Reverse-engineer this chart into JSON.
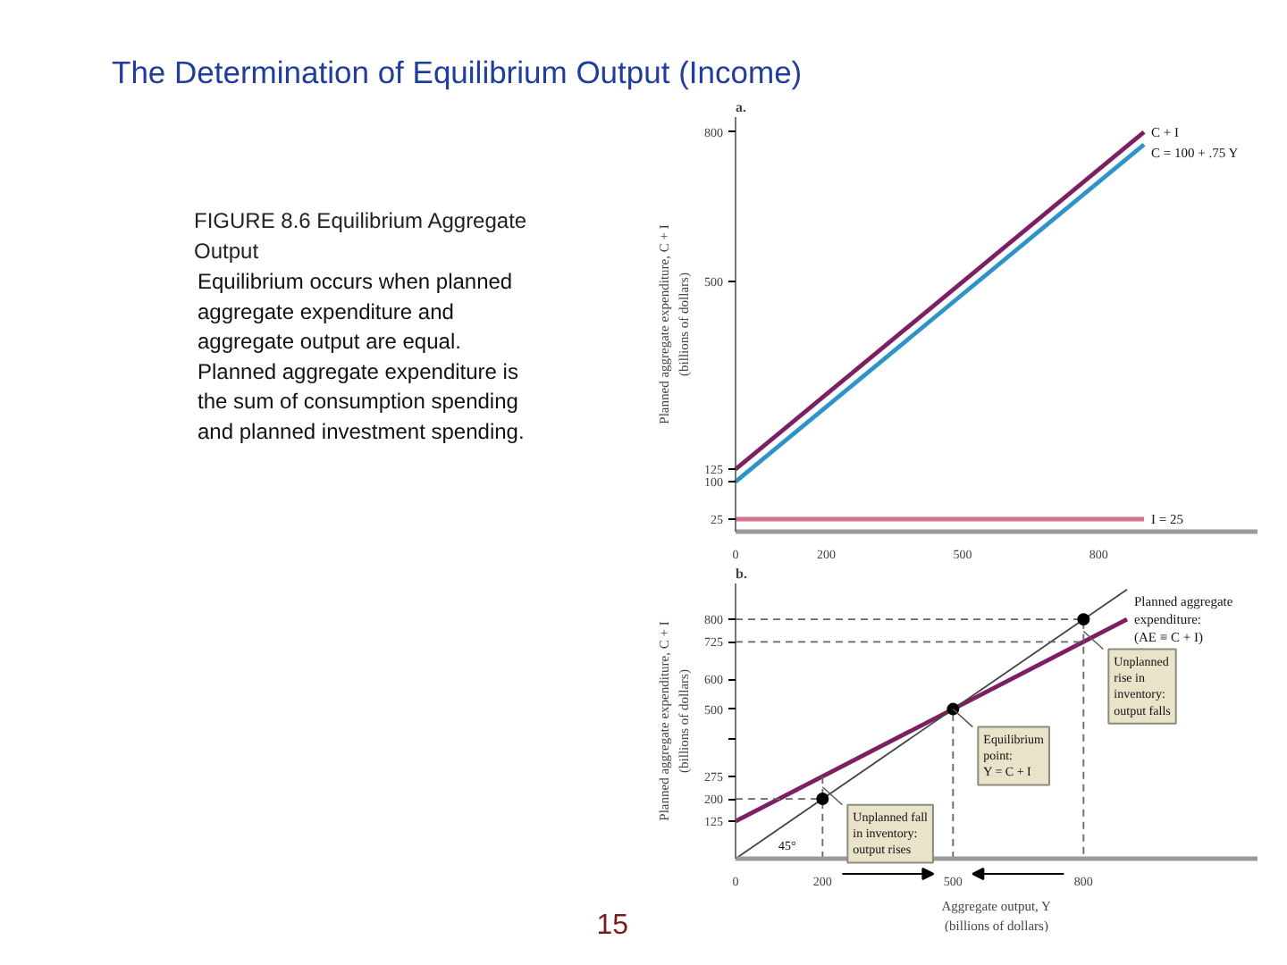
{
  "chart_data": [
    {
      "type": "other",
      "title": "The Determination of Equilibrium Output (Income)",
      "subtitle": "FIGURE 8.6 Equilibrium Aggregate Output",
      "annotations": [
        "Equilibrium occurs when planned aggregate expenditure and aggregate output are equal. Planned aggregate expenditure is the sum of consumption spending and planned investment spending.",
        "15"
      ]
    },
    {
      "type": "line",
      "title": "a.",
      "ylabel": "Planned aggregate expenditure, C + I\n(billions of dollars)",
      "xlim": [
        0,
        1150
      ],
      "ylim": [
        0,
        830
      ],
      "xticks": [
        0,
        200,
        500,
        800
      ],
      "yticks": [
        25,
        100,
        125,
        500,
        800
      ],
      "series": [
        {
          "name": "C + I",
          "color": "#7d1f62",
          "x": [
            0,
            900
          ],
          "values": [
            125,
            800
          ]
        },
        {
          "name": "C = 100 + .75 Y",
          "color": "#2e93c8",
          "x": [
            0,
            900
          ],
          "values": [
            100,
            775
          ]
        },
        {
          "name": "I = 25",
          "color": "#d5728c",
          "x": [
            0,
            900
          ],
          "values": [
            25,
            25
          ]
        }
      ]
    },
    {
      "type": "line",
      "title": "b.",
      "xlabel": "Aggregate output, Y\n(billions of dollars)",
      "ylabel": "Planned aggregate expenditure, C + I\n(billions of dollars)",
      "xlim": [
        0,
        1200
      ],
      "ylim": [
        0,
        920
      ],
      "xticks": [
        0,
        200,
        500,
        800
      ],
      "yticks": [
        125,
        200,
        275,
        {
          "value": 400,
          "label": null
        },
        500,
        600,
        725,
        800
      ],
      "series": [
        {
          "name": "Planned aggregate\nexpenditure:\n(AE ≡ C + I)",
          "color": "#7d1f62",
          "x": [
            0,
            900
          ],
          "values": [
            125,
            800
          ]
        },
        {
          "color": "#444444",
          "x": [
            0,
            900
          ],
          "values": [
            0,
            900
          ]
        },
        {
          "color": "#666666",
          "line_style": "dashed",
          "x": [
            0,
            200
          ],
          "values": [
            200,
            200
          ]
        },
        {
          "color": "#666666",
          "line_style": "dashed",
          "x": [
            200,
            200
          ],
          "values": [
            0,
            275
          ]
        },
        {
          "color": "#666666",
          "line_style": "dashed",
          "x": [
            500,
            500
          ],
          "values": [
            0,
            500
          ]
        },
        {
          "color": "#666666",
          "line_style": "dashed",
          "x": [
            0,
            800,
            800
          ],
          "values": [
            800,
            800,
            0
          ]
        },
        {
          "color": "#666666",
          "line_style": "dashed",
          "x": [
            0,
            800
          ],
          "values": [
            725,
            725
          ]
        },
        {
          "type": "scatter",
          "marker": "circle",
          "color": "#000000",
          "x": [
            200,
            500,
            800
          ],
          "values": [
            200,
            500,
            800
          ]
        }
      ],
      "annotations": [
        {
          "text": "Equilibrium\npoint:\nY = C + I",
          "x": 500,
          "y": 500
        },
        {
          "text": "Unplanned fall\nin inventory:\noutput rises",
          "x": 200,
          "y": 240
        },
        {
          "text": "Unplanned\nrise in\ninventory:\noutput falls",
          "x": 800,
          "y": 760
        },
        "45°"
      ]
    }
  ]
}
